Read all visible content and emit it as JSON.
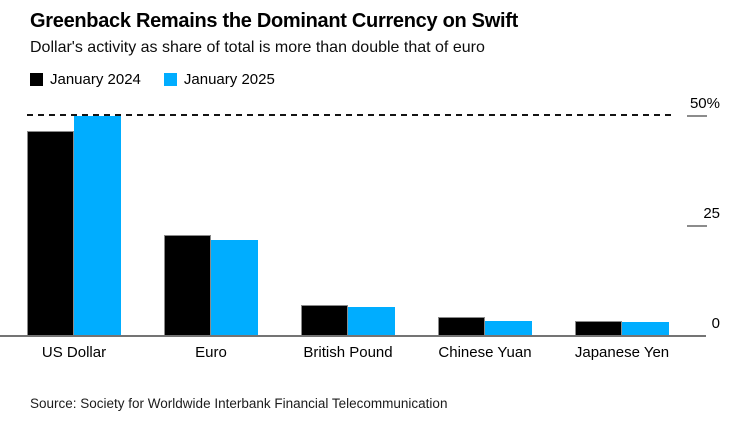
{
  "header": {
    "title": "Greenback Remains the Dominant Currency on Swift",
    "subtitle": "Dollar's activity as share of total is more than double that of euro"
  },
  "colors": {
    "series_2024": "#000000",
    "series_2025": "#00ADFF",
    "axis_gray": "#747474",
    "dashed_gridline": "#141414"
  },
  "chart_data": {
    "type": "bar",
    "title": "Greenback Remains the Dominant Currency on Swift",
    "subtitle": "Dollar's activity as share of total is more than double that of euro",
    "categories": [
      "US Dollar",
      "Euro",
      "British Pound",
      "Chinese Yuan",
      "Japanese Yen"
    ],
    "series": [
      {
        "name": "January 2024",
        "color": "#000000",
        "values": [
          46.6,
          23.0,
          7.0,
          4.3,
          3.4
        ]
      },
      {
        "name": "January 2025",
        "color": "#00ADFF",
        "values": [
          49.9,
          21.8,
          6.6,
          3.4,
          3.2
        ]
      }
    ],
    "unit": "%",
    "xlabel": "",
    "ylabel": "",
    "ylim": [
      0,
      50
    ],
    "yticks": [
      {
        "value": 0,
        "label": "0"
      },
      {
        "value": 25,
        "label": "25"
      },
      {
        "value": 50,
        "label": "50%"
      }
    ],
    "grid": "dashed line at 50 only",
    "legend_position": "top-left",
    "axis_side": "right"
  },
  "footer": {
    "source": "Source: Society for Worldwide Interbank Financial Telecommunication"
  }
}
